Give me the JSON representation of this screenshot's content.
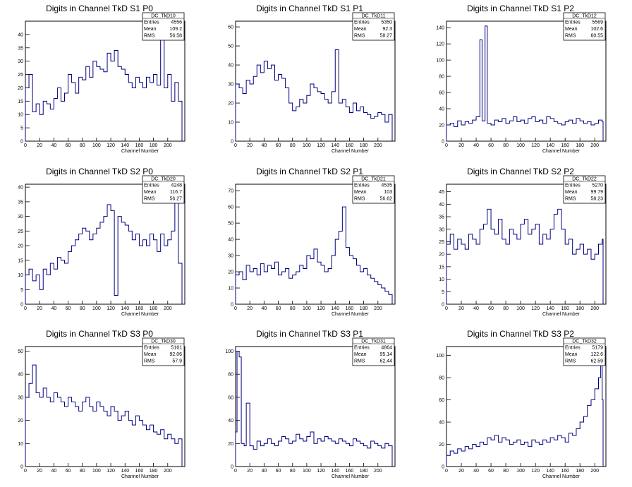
{
  "colors": {
    "line": "#00007f",
    "axis": "#000000",
    "background": "#ffffff"
  },
  "chart_data": [
    {
      "type": "line",
      "title": "Digits in Channel TkD S1 P0",
      "xlabel": "Channel Number",
      "ylabel": "",
      "xlim": [
        0,
        224
      ],
      "ylim": [
        0,
        45
      ],
      "xticks": [
        0,
        20,
        40,
        60,
        80,
        100,
        120,
        140,
        160,
        180,
        200
      ],
      "yticks": [
        0,
        5,
        10,
        15,
        20,
        25,
        30,
        35,
        40
      ],
      "stats": {
        "name": "DC_TkD10",
        "rows": [
          [
            "Entries",
            "4556"
          ],
          [
            "Mean",
            "109.2"
          ],
          [
            "RMS",
            "56.58"
          ]
        ]
      },
      "x": [
        0,
        5,
        10,
        15,
        20,
        25,
        30,
        35,
        40,
        45,
        50,
        55,
        60,
        65,
        70,
        75,
        80,
        85,
        90,
        95,
        100,
        105,
        110,
        115,
        120,
        125,
        130,
        135,
        140,
        145,
        150,
        155,
        160,
        165,
        170,
        175,
        180,
        185,
        190,
        195,
        200,
        205,
        210,
        215
      ],
      "values": [
        20,
        25,
        11,
        14,
        10,
        15,
        14,
        12,
        16,
        20,
        15,
        18,
        25,
        22,
        18,
        24,
        23,
        28,
        24,
        30,
        28,
        27,
        26,
        33,
        30,
        34,
        28,
        27,
        25,
        22,
        20,
        24,
        22,
        20,
        24,
        22,
        25,
        21,
        38,
        20,
        25,
        15,
        22,
        15
      ]
    },
    {
      "type": "line",
      "title": "Digits in Channel TkD S1 P1",
      "xlabel": "Channel Number",
      "ylabel": "",
      "xlim": [
        0,
        224
      ],
      "ylim": [
        0,
        63
      ],
      "xticks": [
        0,
        20,
        40,
        60,
        80,
        100,
        120,
        140,
        160,
        180,
        200
      ],
      "yticks": [
        0,
        10,
        20,
        30,
        40,
        50,
        60
      ],
      "stats": {
        "name": "DC_TkD11",
        "rows": [
          [
            "Entries",
            "5350"
          ],
          [
            "Mean",
            "92.3"
          ],
          [
            "RMS",
            "58.27"
          ]
        ]
      },
      "x": [
        0,
        5,
        10,
        15,
        20,
        25,
        30,
        35,
        40,
        45,
        50,
        55,
        60,
        65,
        70,
        75,
        80,
        85,
        90,
        95,
        100,
        105,
        110,
        115,
        120,
        125,
        130,
        135,
        140,
        145,
        150,
        155,
        160,
        165,
        170,
        175,
        180,
        185,
        190,
        195,
        200,
        205,
        210,
        215
      ],
      "values": [
        30,
        28,
        25,
        32,
        30,
        34,
        40,
        36,
        42,
        38,
        40,
        32,
        35,
        33,
        28,
        20,
        16,
        18,
        22,
        20,
        24,
        30,
        28,
        26,
        25,
        22,
        20,
        26,
        48,
        20,
        22,
        18,
        15,
        20,
        16,
        18,
        15,
        14,
        12,
        13,
        15,
        14,
        10,
        14
      ]
    },
    {
      "type": "line",
      "title": "Digits in Channel TkD S1 P2",
      "xlabel": "Channel Number",
      "ylabel": "",
      "xlim": [
        0,
        215
      ],
      "ylim": [
        0,
        148
      ],
      "xticks": [
        0,
        20,
        40,
        60,
        80,
        100,
        120,
        140,
        160,
        180,
        200
      ],
      "yticks": [
        0,
        20,
        40,
        60,
        80,
        100,
        120,
        140
      ],
      "stats": {
        "name": "DC_TkD12",
        "rows": [
          [
            "Entries",
            "5569"
          ],
          [
            "Mean",
            "102.6"
          ],
          [
            "RMS",
            "60.55"
          ]
        ]
      },
      "x": [
        0,
        5,
        10,
        15,
        20,
        25,
        30,
        35,
        40,
        45,
        48,
        52,
        55,
        60,
        65,
        70,
        75,
        80,
        85,
        90,
        95,
        100,
        105,
        110,
        115,
        120,
        125,
        130,
        135,
        140,
        145,
        150,
        155,
        160,
        165,
        170,
        175,
        180,
        185,
        190,
        195,
        200,
        205,
        210
      ],
      "values": [
        20,
        22,
        18,
        25,
        20,
        24,
        22,
        26,
        30,
        125,
        25,
        142,
        22,
        20,
        26,
        24,
        28,
        22,
        25,
        30,
        24,
        26,
        22,
        28,
        30,
        24,
        26,
        22,
        30,
        28,
        24,
        22,
        20,
        24,
        26,
        22,
        28,
        25,
        22,
        24,
        20,
        22,
        26,
        24
      ]
    },
    {
      "type": "line",
      "title": "Digits in Channel TkD S2 P0",
      "xlabel": "Channel Number",
      "ylabel": "",
      "xlim": [
        0,
        224
      ],
      "ylim": [
        0,
        41
      ],
      "xticks": [
        0,
        20,
        40,
        60,
        80,
        100,
        120,
        140,
        160,
        180,
        200
      ],
      "yticks": [
        0,
        5,
        10,
        15,
        20,
        25,
        30,
        35,
        40
      ],
      "stats": {
        "name": "DC_TkD20",
        "rows": [
          [
            "Entries",
            "4248"
          ],
          [
            "Mean",
            "116.7"
          ],
          [
            "RMS",
            "56.27"
          ]
        ]
      },
      "x": [
        0,
        5,
        10,
        15,
        20,
        25,
        30,
        35,
        40,
        45,
        50,
        55,
        60,
        65,
        70,
        75,
        80,
        85,
        90,
        95,
        100,
        105,
        110,
        115,
        120,
        125,
        130,
        135,
        140,
        145,
        150,
        155,
        160,
        165,
        170,
        175,
        180,
        185,
        190,
        195,
        200,
        205,
        210,
        215
      ],
      "values": [
        10,
        12,
        8,
        10,
        5,
        12,
        10,
        14,
        12,
        16,
        15,
        14,
        18,
        20,
        22,
        24,
        26,
        25,
        22,
        24,
        26,
        28,
        30,
        34,
        32,
        3,
        30,
        28,
        27,
        25,
        22,
        24,
        20,
        22,
        20,
        24,
        22,
        18,
        24,
        20,
        22,
        25,
        35,
        14
      ]
    },
    {
      "type": "line",
      "title": "Digits in Channel TkD S2 P1",
      "xlabel": "Channel Number",
      "ylabel": "",
      "xlim": [
        0,
        224
      ],
      "ylim": [
        0,
        74
      ],
      "xticks": [
        0,
        20,
        40,
        60,
        80,
        100,
        120,
        140,
        160,
        180,
        200
      ],
      "yticks": [
        0,
        10,
        20,
        30,
        40,
        50,
        60,
        70
      ],
      "stats": {
        "name": "DC_TkD21",
        "rows": [
          [
            "Entries",
            "4535"
          ],
          [
            "Mean",
            "103"
          ],
          [
            "RMS",
            "56.62"
          ]
        ]
      },
      "x": [
        0,
        5,
        10,
        15,
        20,
        25,
        30,
        35,
        40,
        45,
        50,
        55,
        60,
        65,
        70,
        75,
        80,
        85,
        90,
        95,
        100,
        105,
        110,
        115,
        120,
        125,
        130,
        135,
        140,
        145,
        150,
        155,
        160,
        165,
        170,
        175,
        180,
        185,
        190,
        195,
        200,
        205,
        210,
        215
      ],
      "values": [
        18,
        20,
        15,
        24,
        20,
        22,
        18,
        25,
        20,
        24,
        22,
        26,
        18,
        20,
        22,
        16,
        18,
        20,
        24,
        22,
        30,
        28,
        34,
        26,
        24,
        20,
        22,
        30,
        40,
        45,
        60,
        35,
        30,
        28,
        24,
        20,
        22,
        18,
        16,
        14,
        12,
        10,
        8,
        6
      ]
    },
    {
      "type": "line",
      "title": "Digits in Channel TkD S2 P2",
      "xlabel": "Channel Number",
      "ylabel": "",
      "xlim": [
        0,
        215
      ],
      "ylim": [
        0,
        48
      ],
      "xticks": [
        0,
        20,
        40,
        60,
        80,
        100,
        120,
        140,
        160,
        180,
        200
      ],
      "yticks": [
        0,
        5,
        10,
        15,
        20,
        25,
        30,
        35,
        40,
        45
      ],
      "stats": {
        "name": "DC_TkD22",
        "rows": [
          [
            "Entries",
            "5270"
          ],
          [
            "Mean",
            "99.79"
          ],
          [
            "RMS",
            "58.23"
          ]
        ]
      },
      "x": [
        0,
        5,
        10,
        15,
        20,
        25,
        30,
        35,
        40,
        45,
        50,
        55,
        60,
        65,
        70,
        75,
        80,
        85,
        90,
        95,
        100,
        105,
        110,
        115,
        120,
        125,
        130,
        135,
        140,
        145,
        150,
        155,
        160,
        165,
        170,
        175,
        180,
        185,
        190,
        195,
        200,
        205,
        210
      ],
      "values": [
        24,
        28,
        22,
        26,
        24,
        22,
        28,
        26,
        24,
        30,
        32,
        38,
        30,
        28,
        34,
        26,
        24,
        30,
        28,
        26,
        32,
        34,
        28,
        30,
        32,
        24,
        28,
        26,
        30,
        36,
        38,
        30,
        24,
        26,
        20,
        22,
        24,
        20,
        22,
        18,
        20,
        24,
        26
      ]
    },
    {
      "type": "line",
      "title": "Digits in Channel TkD S3 P0",
      "xlabel": "Channel Number",
      "ylabel": "",
      "xlim": [
        0,
        224
      ],
      "ylim": [
        0,
        52
      ],
      "xticks": [
        0,
        20,
        40,
        60,
        80,
        100,
        120,
        140,
        160,
        180,
        200
      ],
      "yticks": [
        0,
        10,
        20,
        30,
        40,
        50
      ],
      "stats": {
        "name": "DC_TkD30",
        "rows": [
          [
            "Entries",
            "5161"
          ],
          [
            "Mean",
            "92.06"
          ],
          [
            "RMS",
            "57.9"
          ]
        ]
      },
      "x": [
        0,
        5,
        10,
        15,
        20,
        25,
        30,
        35,
        40,
        45,
        50,
        55,
        60,
        65,
        70,
        75,
        80,
        85,
        90,
        95,
        100,
        105,
        110,
        115,
        120,
        125,
        130,
        135,
        140,
        145,
        150,
        155,
        160,
        165,
        170,
        175,
        180,
        185,
        190,
        195,
        200,
        205,
        210,
        215
      ],
      "values": [
        30,
        36,
        44,
        32,
        30,
        34,
        30,
        28,
        32,
        30,
        28,
        26,
        30,
        28,
        26,
        24,
        28,
        30,
        26,
        24,
        28,
        26,
        24,
        22,
        26,
        24,
        20,
        22,
        24,
        20,
        18,
        22,
        20,
        18,
        16,
        18,
        15,
        14,
        16,
        12,
        14,
        12,
        10,
        12
      ]
    },
    {
      "type": "line",
      "title": "Digits in Channel TkD S3 P1",
      "xlabel": "Channel Number",
      "ylabel": "",
      "xlim": [
        0,
        224
      ],
      "ylim": [
        0,
        104
      ],
      "xticks": [
        0,
        20,
        40,
        60,
        80,
        100,
        120,
        140,
        160,
        180,
        200
      ],
      "yticks": [
        0,
        20,
        40,
        60,
        80,
        100
      ],
      "stats": {
        "name": "DC_TkD31",
        "rows": [
          [
            "Entries",
            "4864"
          ],
          [
            "Mean",
            "95.14"
          ],
          [
            "RMS",
            "62.44"
          ]
        ]
      },
      "x": [
        0,
        2,
        5,
        8,
        12,
        15,
        20,
        25,
        30,
        35,
        40,
        45,
        50,
        55,
        60,
        65,
        70,
        75,
        80,
        85,
        90,
        95,
        100,
        105,
        110,
        115,
        120,
        125,
        130,
        135,
        140,
        145,
        150,
        155,
        160,
        165,
        170,
        175,
        180,
        185,
        190,
        195,
        200,
        205,
        210,
        215
      ],
      "values": [
        30,
        100,
        95,
        20,
        18,
        55,
        18,
        15,
        22,
        18,
        20,
        24,
        20,
        18,
        22,
        26,
        24,
        20,
        22,
        28,
        24,
        22,
        26,
        30,
        20,
        24,
        22,
        26,
        24,
        22,
        20,
        24,
        22,
        20,
        18,
        24,
        22,
        20,
        18,
        16,
        22,
        20,
        18,
        16,
        20,
        18
      ]
    },
    {
      "type": "line",
      "title": "Digits in Channel TkD S3 P2",
      "xlabel": "Channel Number",
      "ylabel": "",
      "xlim": [
        0,
        215
      ],
      "ylim": [
        0,
        108
      ],
      "xticks": [
        0,
        20,
        40,
        60,
        80,
        100,
        120,
        140,
        160,
        180,
        200
      ],
      "yticks": [
        0,
        20,
        40,
        60,
        80,
        100
      ],
      "stats": {
        "name": "DC_TkD32",
        "rows": [
          [
            "Entries",
            "5179"
          ],
          [
            "Mean",
            "122.6"
          ],
          [
            "RMS",
            "62.59"
          ]
        ]
      },
      "x": [
        0,
        5,
        10,
        15,
        20,
        25,
        30,
        35,
        40,
        45,
        50,
        55,
        60,
        65,
        70,
        75,
        80,
        85,
        90,
        95,
        100,
        105,
        110,
        115,
        120,
        125,
        130,
        135,
        140,
        145,
        150,
        155,
        160,
        165,
        170,
        175,
        180,
        185,
        190,
        195,
        200,
        205,
        208,
        210
      ],
      "values": [
        10,
        14,
        12,
        16,
        14,
        18,
        16,
        20,
        18,
        22,
        20,
        26,
        24,
        28,
        22,
        26,
        24,
        20,
        22,
        24,
        20,
        22,
        18,
        24,
        22,
        20,
        24,
        22,
        26,
        24,
        28,
        26,
        22,
        30,
        28,
        34,
        40,
        45,
        55,
        60,
        70,
        80,
        95,
        60
      ]
    }
  ]
}
